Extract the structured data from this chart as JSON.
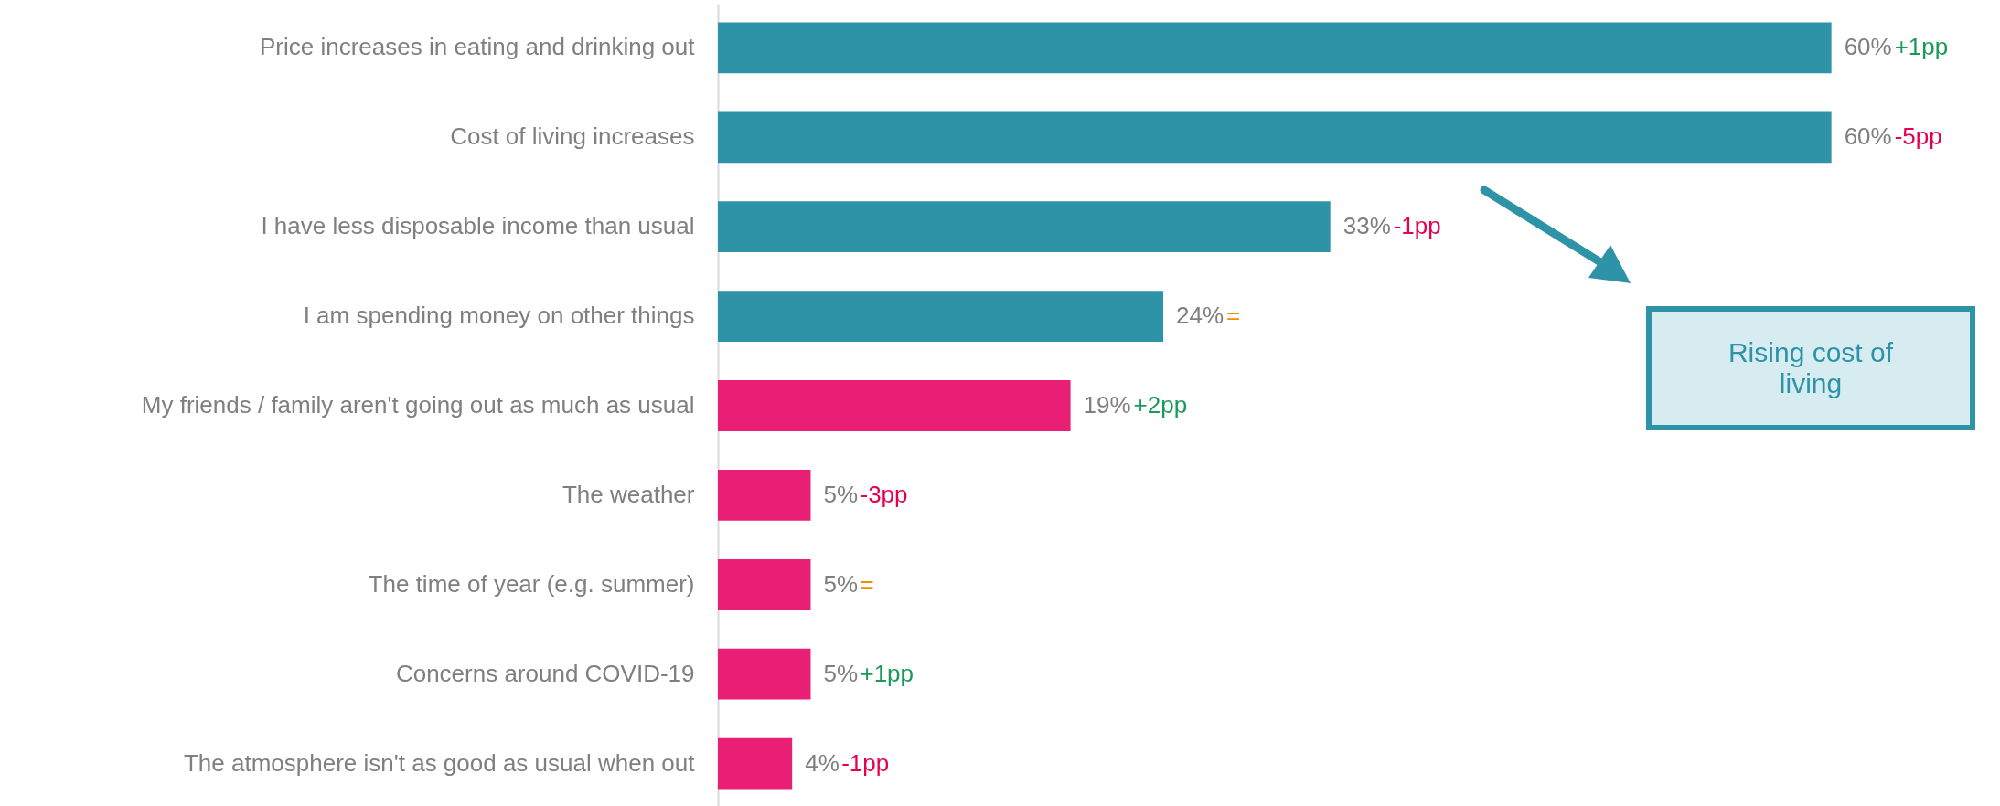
{
  "chart_data": {
    "type": "bar",
    "orientation": "horizontal",
    "categories": [
      "Price increases in eating and drinking out",
      "Cost of living increases",
      "I have less disposable income than usual",
      "I am spending money on other things",
      "My friends / family aren't going out as much as usual",
      "The weather",
      "The time of year (e.g. summer)",
      "Concerns around COVID-19",
      "The atmosphere isn't as good as usual when out"
    ],
    "values": [
      60,
      60,
      33,
      24,
      19,
      5,
      5,
      5,
      4
    ],
    "value_labels": [
      "60%",
      "60%",
      "33%",
      "24%",
      "19%",
      "5%",
      "5%",
      "5%",
      "4%"
    ],
    "colors": [
      "#2e93a6",
      "#2e93a6",
      "#2e93a6",
      "#2e93a6",
      "#e91e75",
      "#e91e75",
      "#e91e75",
      "#e91e75",
      "#e91e75"
    ],
    "xlim": [
      0,
      68
    ],
    "tick_labels": "y",
    "annotations": [
      {
        "text": "+1pp",
        "x": 60,
        "y": "Price increases in eating and drinking out"
      },
      {
        "text": "-5pp",
        "x": 60,
        "y": "Cost of living increases"
      },
      {
        "text": "-1pp",
        "x": 33,
        "y": "I have less disposable income than usual"
      },
      {
        "text": "=",
        "x": 24,
        "y": "I am spending money on other things"
      },
      {
        "text": "+2pp",
        "x": 19,
        "y": "My friends / family aren't going out as much as usual"
      },
      {
        "text": "-3pp",
        "x": 5,
        "y": "The weather"
      },
      {
        "text": "=",
        "x": 5,
        "y": "The time of year (e.g. summer)"
      },
      {
        "text": "+1pp",
        "x": 5,
        "y": "Concerns around COVID-19"
      },
      {
        "text": "-1pp",
        "x": 4,
        "y": "The atmosphere isn't as good as usual when out"
      },
      "Rising cost of living"
    ]
  }
}
